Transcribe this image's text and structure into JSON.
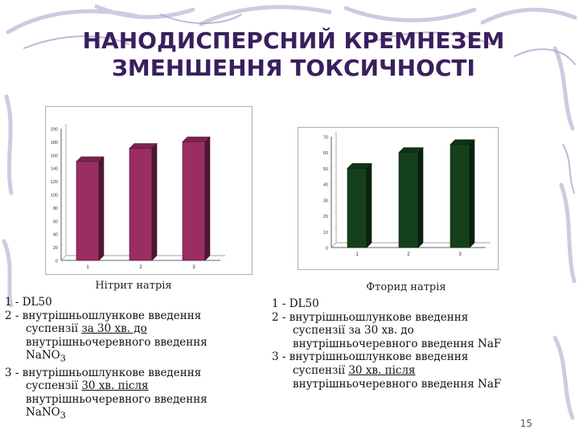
{
  "slide": {
    "title_line1": "НАНОДИСПЕРСНИЙ КРЕМНЕЗЕМ",
    "title_line2": "ЗМЕНШЕННЯ ТОКСИЧНОСТІ",
    "page_number": "15"
  },
  "colors": {
    "title": "#3a1f5e",
    "bar_left": "#9a2d62",
    "bar_right": "#15401c",
    "background_swirl": "#b9b9d6"
  },
  "chart_data": [
    {
      "type": "bar",
      "title": "",
      "caption": "Нітрит натрія",
      "categories": [
        "1",
        "2",
        "3"
      ],
      "values": [
        150,
        170,
        180
      ],
      "ylim": [
        0,
        200
      ],
      "yticks": [
        "0",
        "20",
        "40",
        "60",
        "80",
        "100",
        "120",
        "140",
        "160",
        "180",
        "200"
      ],
      "xlabel": "",
      "ylabel": "",
      "legend": "none",
      "grid": false
    },
    {
      "type": "bar",
      "title": "",
      "caption": "Фторид натрія",
      "categories": [
        "1",
        "2",
        "3"
      ],
      "values": [
        50,
        60,
        65
      ],
      "ylim": [
        0,
        70
      ],
      "yticks": [
        "0",
        "10",
        "20",
        "30",
        "40",
        "50",
        "60",
        "70"
      ],
      "xlabel": "",
      "ylabel": "",
      "legend": "none",
      "grid": false
    }
  ],
  "legend_left": {
    "item1": "1 - DL50",
    "item2_a": "2 - внутрішньошлункове введення",
    "item2_b_pre": "суспензії ",
    "item2_b_u": "за 30 хв. до",
    "item2_c": "внутрішньочеревного введення",
    "item2_d": "NaNO",
    "item2_d_sub": "3",
    "item3_a": "3 - внутрішньошлункове введення",
    "item3_b_pre": "суспензії ",
    "item3_b_u": "30 хв. після",
    "item3_c": "внутрішньочеревного введення",
    "item3_d": "NaNO",
    "item3_d_sub": "3"
  },
  "legend_right": {
    "item1": "1 - DL50",
    "item2_a": "2 - внутрішньошлункове введення",
    "item2_b": "суспензії за 30 хв. до",
    "item2_c": "внутрішньочеревного введення NaF",
    "item3_a": "3 - внутрішньошлункове введення",
    "item3_b_pre": "суспензії ",
    "item3_b_u": "30 хв. після",
    "item3_c": "внутрішньочеревного введення NaF"
  }
}
